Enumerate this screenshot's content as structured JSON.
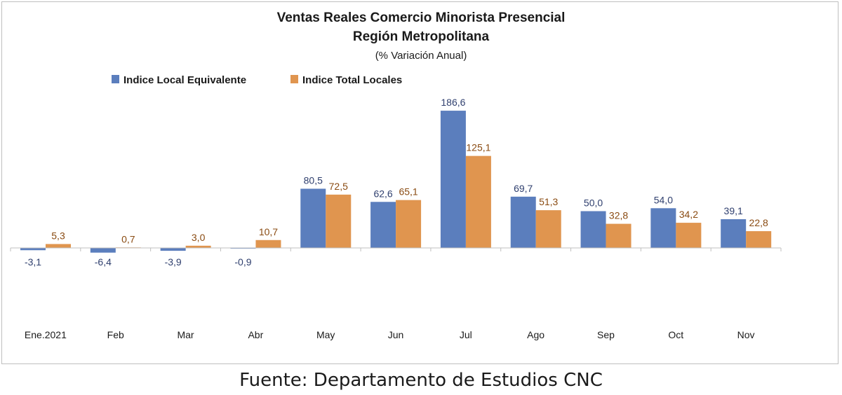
{
  "chart_data": {
    "type": "bar",
    "title": "Ventas Reales Comercio Minorista Presencial",
    "subtitle": "Región Metropolitana",
    "subtitle2": "(% Variación Anual)",
    "categories": [
      "Ene.2021",
      "Feb",
      "Mar",
      "Abr",
      "May",
      "Jun",
      "Jul",
      "Ago",
      "Sep",
      "Oct",
      "Nov"
    ],
    "series": [
      {
        "name": "Indice Local Equivalente",
        "color": "#5b7ebd",
        "label_color": "#2f3f6e",
        "values": [
          -3.1,
          -6.4,
          -3.9,
          -0.9,
          80.5,
          62.6,
          186.6,
          69.7,
          50.0,
          54.0,
          39.1
        ],
        "labels": [
          "-3,1",
          "-6,4",
          "-3,9",
          "-0,9",
          "80,5",
          "62,6",
          "186,6",
          "69,7",
          "50,0",
          "54,0",
          "39,1"
        ]
      },
      {
        "name": "Indice Total Locales",
        "color": "#e0954f",
        "label_color": "#8a4b12",
        "values": [
          5.3,
          0.7,
          3.0,
          10.7,
          72.5,
          65.1,
          125.1,
          51.3,
          32.8,
          34.2,
          22.8
        ],
        "labels": [
          "5,3",
          "0,7",
          "3,0",
          "10,7",
          "72,5",
          "65,1",
          "125,1",
          "51,3",
          "32,8",
          "34,2",
          "22,8"
        ]
      }
    ],
    "legend_position": "top-left",
    "ylim": [
      -80,
      200
    ],
    "grid": false
  },
  "source": "Fuente: Departamento de Estudios CNC"
}
